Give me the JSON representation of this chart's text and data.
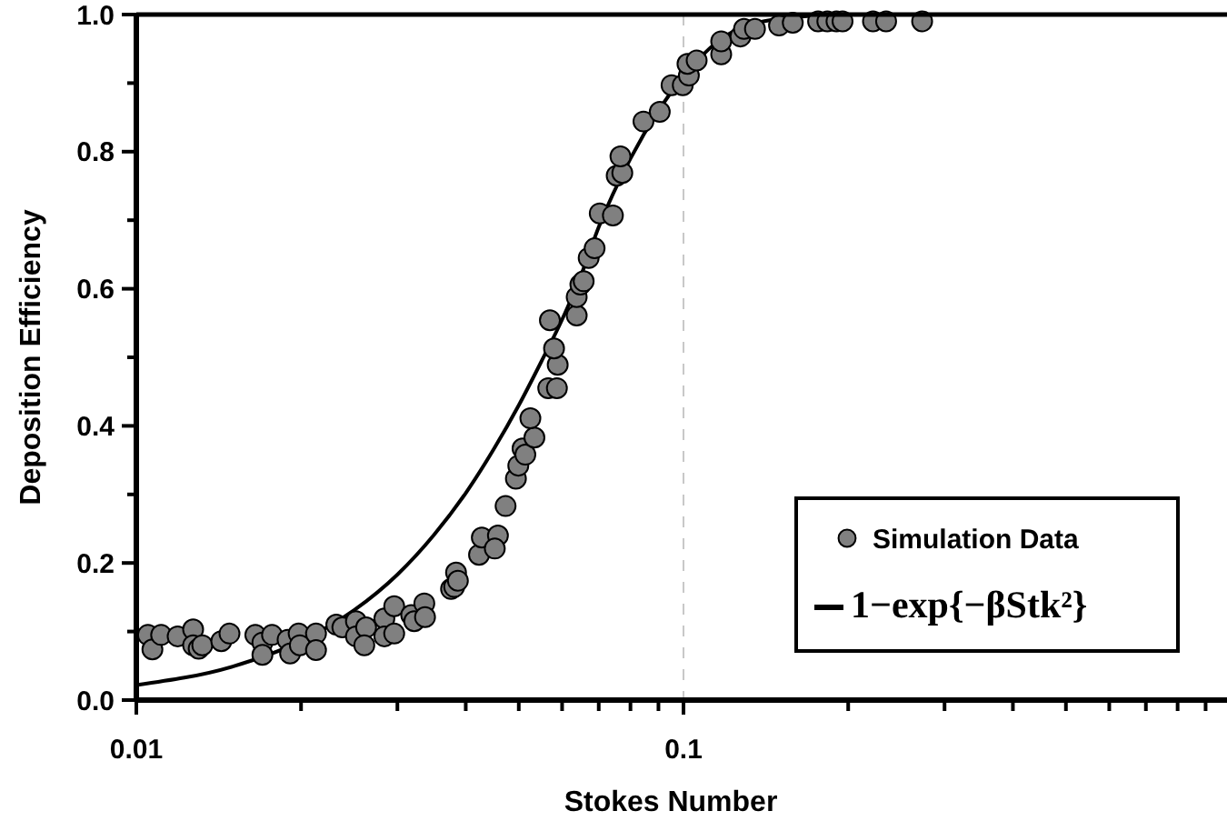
{
  "chart_data": {
    "type": "scatter",
    "xlabel": "Stokes Number",
    "ylabel": "Deposition Efficiency",
    "log": "x",
    "xlim": [
      0.01,
      1
    ],
    "xticks": [
      0.01,
      {
        "value": 0.02,
        "label": null
      },
      {
        "value": 0.03,
        "label": null
      },
      {
        "value": 0.04,
        "label": null
      },
      {
        "value": 0.05,
        "label": null
      },
      {
        "value": 0.06,
        "label": null
      },
      {
        "value": 0.07,
        "label": null
      },
      {
        "value": 0.08,
        "label": null
      },
      {
        "value": 0.09,
        "label": null
      },
      0.1,
      {
        "value": 0.2,
        "label": null
      },
      {
        "value": 0.3,
        "label": null
      },
      {
        "value": 0.4,
        "label": null
      },
      {
        "value": 0.5,
        "label": null
      },
      {
        "value": 0.6,
        "label": null
      },
      {
        "value": 0.7,
        "label": null
      },
      {
        "value": 0.8,
        "label": null
      },
      {
        "value": 0.9,
        "label": null
      }
    ],
    "ylim": [
      0,
      1
    ],
    "yticks": [
      {
        "value": 0,
        "label": "0.0"
      },
      {
        "value": 0.1,
        "label": null
      },
      0.2,
      {
        "value": 0.3,
        "label": null
      },
      0.4,
      {
        "value": 0.5,
        "label": null
      },
      0.6,
      {
        "value": 0.7,
        "label": null
      },
      0.8,
      {
        "value": 0.9,
        "label": null
      },
      {
        "value": 1,
        "label": "1.0"
      }
    ],
    "grid": "x",
    "legend": "bottom right",
    "series": [
      {
        "name": "Simulation Data",
        "marker": "circle",
        "color": "#808080",
        "x": [
          0.0105,
          0.0107,
          0.0111,
          0.0119,
          0.0127,
          0.0127,
          0.013,
          0.0132,
          0.0143,
          0.0148,
          0.0165,
          0.017,
          0.017,
          0.0177,
          0.0189,
          0.0191,
          0.0198,
          0.0199,
          0.0213,
          0.0213,
          0.0232,
          0.0238,
          0.0252,
          0.0252,
          0.0263,
          0.0261,
          0.0284,
          0.0284,
          0.0296,
          0.0296,
          0.0318,
          0.0322,
          0.0336,
          0.0337,
          0.0376,
          0.0381,
          0.0384,
          0.0387,
          0.0423,
          0.0428,
          0.0458,
          0.0452,
          0.0473,
          0.0494,
          0.0499,
          0.0508,
          0.0514,
          0.0534,
          0.0525,
          0.0566,
          0.0587,
          0.0589,
          0.058,
          0.057,
          0.0638,
          0.0638,
          0.0648,
          0.0657,
          0.0671,
          0.0688,
          0.0703,
          0.0743,
          0.0755,
          0.0773,
          0.0767,
          0.0845,
          0.0905,
          0.0951,
          0.0997,
          0.1023,
          0.1017,
          0.1057,
          0.1172,
          0.1172,
          0.1271,
          0.129,
          0.1351,
          0.1495,
          0.1584,
          0.1762,
          0.1832,
          0.1904,
          0.1953,
          0.222,
          0.2346,
          0.273
        ],
        "values": [
          0.095,
          0.074,
          0.095,
          0.093,
          0.103,
          0.08,
          0.075,
          0.08,
          0.086,
          0.097,
          0.095,
          0.084,
          0.066,
          0.095,
          0.088,
          0.068,
          0.097,
          0.08,
          0.097,
          0.073,
          0.11,
          0.106,
          0.115,
          0.093,
          0.106,
          0.08,
          0.119,
          0.093,
          0.137,
          0.097,
          0.124,
          0.115,
          0.141,
          0.121,
          0.162,
          0.165,
          0.186,
          0.174,
          0.212,
          0.237,
          0.24,
          0.221,
          0.283,
          0.323,
          0.342,
          0.367,
          0.358,
          0.383,
          0.411,
          0.455,
          0.455,
          0.489,
          0.513,
          0.554,
          0.561,
          0.588,
          0.606,
          0.611,
          0.645,
          0.659,
          0.71,
          0.707,
          0.765,
          0.769,
          0.793,
          0.844,
          0.858,
          0.897,
          0.897,
          0.911,
          0.928,
          0.933,
          0.942,
          0.961,
          0.968,
          0.979,
          0.979,
          0.984,
          0.988,
          0.99,
          0.99,
          0.99,
          0.99,
          0.99,
          0.99,
          0.99
        ]
      },
      {
        "name": "1−exp{−βStk²}",
        "type": "line",
        "color": "#000000",
        "x": [
          0.01,
          0.015,
          0.02,
          0.025,
          0.03,
          0.035,
          0.04,
          0.045,
          0.05,
          0.055,
          0.06,
          0.065,
          0.07,
          0.08,
          0.09,
          0.1,
          0.12,
          0.14,
          0.17,
          0.2,
          0.3,
          0.5,
          1
        ],
        "values": [
          0.022,
          0.049,
          0.086,
          0.131,
          0.183,
          0.241,
          0.302,
          0.366,
          0.43,
          0.494,
          0.555,
          0.62,
          0.69,
          0.79,
          0.86,
          0.91,
          0.97,
          0.99,
          0.998,
          1,
          1,
          1,
          1
        ]
      }
    ]
  }
}
